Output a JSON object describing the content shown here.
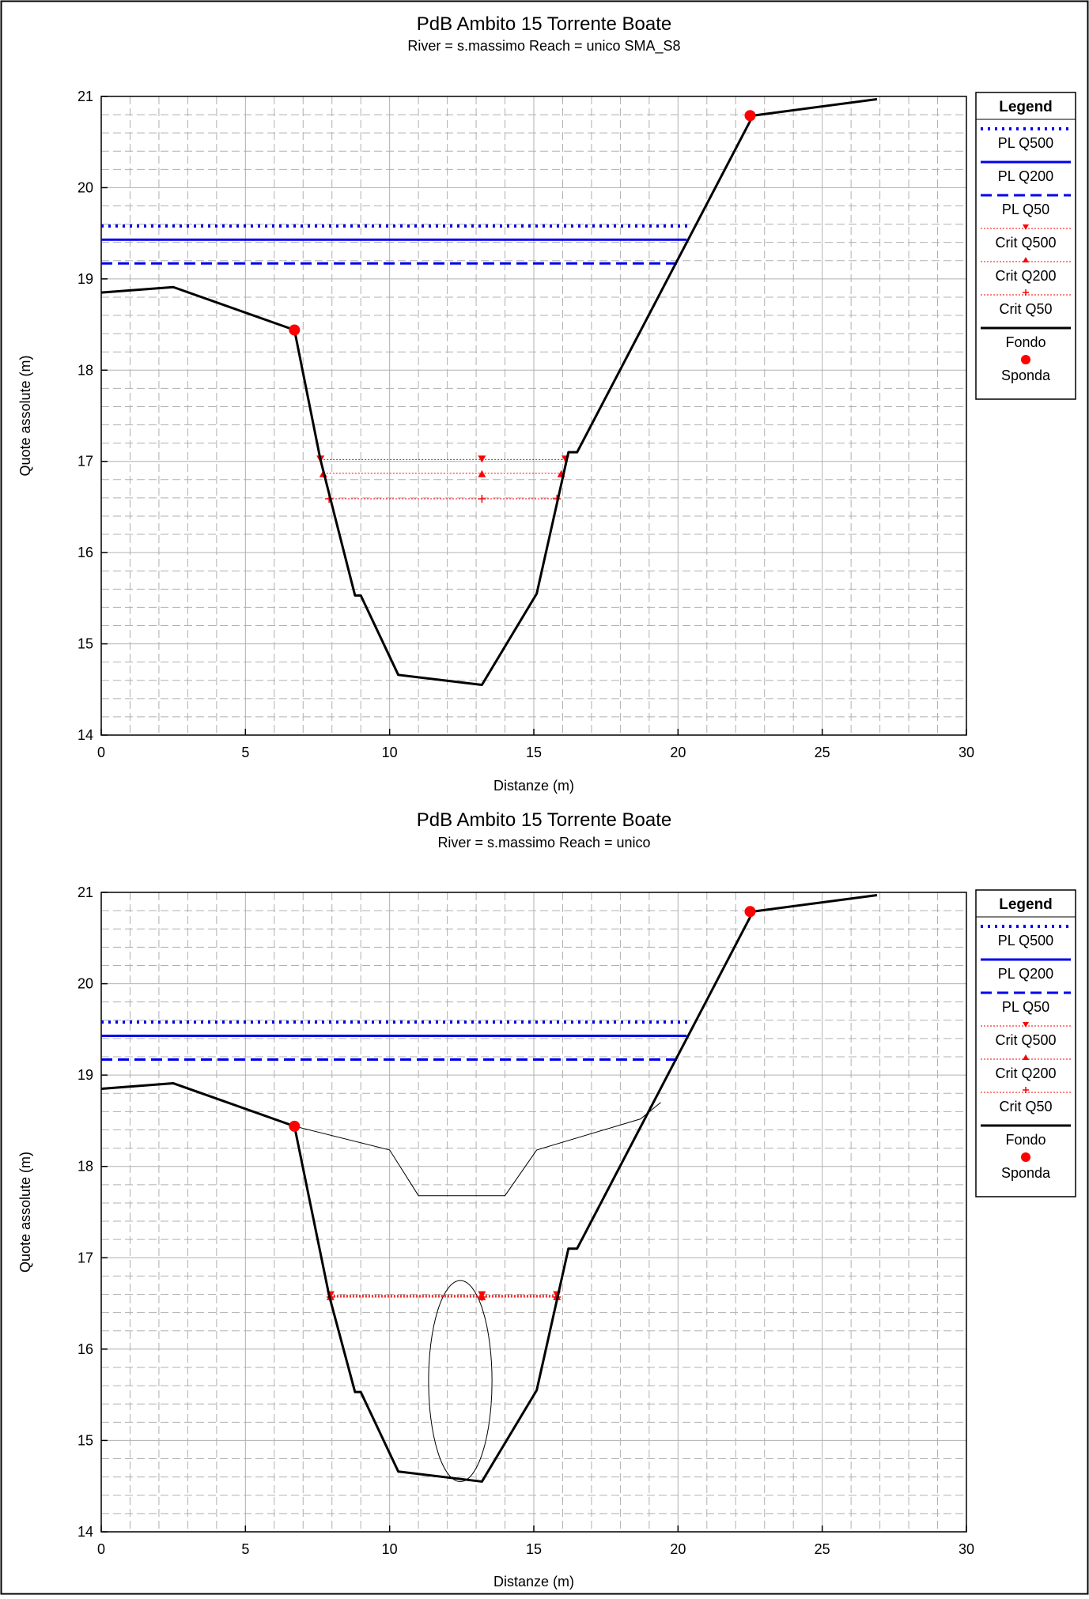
{
  "chart_data": [
    {
      "type": "line",
      "title": "PdB Ambito 15 Torrente Boate",
      "subtitle": "River = s.massimo   Reach = unico      SMA_S8",
      "xlabel": "Distanze (m)",
      "ylabel": "Quote assolute (m)",
      "xlim": [
        0,
        30
      ],
      "ylim": [
        14,
        21
      ],
      "xticks": [
        "0",
        "5",
        "10",
        "15",
        "20",
        "25",
        "30"
      ],
      "yticks": [
        "14",
        "15",
        "16",
        "17",
        "18",
        "19",
        "20",
        "21"
      ],
      "grid": true,
      "legend_position": "right",
      "legend_title": "Legend",
      "legend": [
        "PL Q500",
        "PL Q200",
        "PL Q50",
        "Crit Q500",
        "Crit Q200",
        "Crit Q50",
        "Fondo",
        "Sponda"
      ],
      "colors": {
        "water": "#0000ee",
        "crit": "#ff0000",
        "ground": "#000000",
        "bank": "#ff0000",
        "grid": "#b0b0b0"
      },
      "series": [
        {
          "name": "PL Q500",
          "style": "dotted",
          "x": [
            0,
            20.4
          ],
          "y": [
            19.58,
            19.58
          ]
        },
        {
          "name": "PL Q200",
          "style": "solid",
          "x": [
            0,
            20.3
          ],
          "y": [
            19.43,
            19.43
          ]
        },
        {
          "name": "PL Q50",
          "style": "dashed",
          "x": [
            0,
            20.0
          ],
          "y": [
            19.17,
            19.17
          ]
        },
        {
          "name": "Crit Q500",
          "style": "crit",
          "marker": "triangle-down",
          "x": [
            7.6,
            13.2,
            16.1
          ],
          "y": [
            17.02,
            17.02,
            17.02
          ]
        },
        {
          "name": "Crit Q200",
          "style": "crit",
          "marker": "triangle-up",
          "x": [
            7.7,
            13.2,
            15.95
          ],
          "y": [
            16.87,
            16.87,
            16.87
          ]
        },
        {
          "name": "Crit Q50",
          "style": "crit",
          "marker": "plus",
          "x": [
            7.9,
            13.2,
            15.8
          ],
          "y": [
            16.59,
            16.59,
            16.59
          ]
        },
        {
          "name": "Fondo",
          "style": "ground",
          "x": [
            0,
            2.5,
            6.7,
            7.6,
            8.8,
            9.0,
            10.3,
            13.2,
            15.1,
            16.2,
            16.5,
            22.6,
            26.9
          ],
          "y": [
            18.85,
            18.91,
            18.44,
            17.02,
            15.53,
            15.53,
            14.66,
            14.55,
            15.55,
            17.1,
            17.1,
            20.79,
            20.97
          ]
        },
        {
          "name": "Sponda",
          "style": "bank",
          "x": [
            6.7,
            22.5
          ],
          "y": [
            18.44,
            20.79
          ]
        }
      ]
    },
    {
      "type": "line",
      "title": "PdB Ambito 15 Torrente Boate",
      "subtitle": "River = s.massimo   Reach = unico",
      "xlabel": "Distanze (m)",
      "ylabel": "Quote assolute (m)",
      "xlim": [
        0,
        30
      ],
      "ylim": [
        14,
        21
      ],
      "xticks": [
        "0",
        "5",
        "10",
        "15",
        "20",
        "25",
        "30"
      ],
      "yticks": [
        "14",
        "15",
        "16",
        "17",
        "18",
        "19",
        "20",
        "21"
      ],
      "grid": true,
      "legend_position": "right",
      "legend_title": "Legend",
      "legend": [
        "PL Q500",
        "PL Q200",
        "PL Q50",
        "Crit Q500",
        "Crit Q200",
        "Crit Q50",
        "Fondo",
        "Sponda"
      ],
      "colors": {
        "water": "#0000ee",
        "crit": "#ff0000",
        "ground": "#000000",
        "bank": "#ff0000",
        "grid": "#b0b0b0"
      },
      "series": [
        {
          "name": "PL Q500",
          "style": "dotted",
          "x": [
            0,
            20.4
          ],
          "y": [
            19.58,
            19.58
          ]
        },
        {
          "name": "PL Q200",
          "style": "solid",
          "x": [
            0,
            20.3
          ],
          "y": [
            19.43,
            19.43
          ]
        },
        {
          "name": "PL Q50",
          "style": "dashed",
          "x": [
            0,
            20.0
          ],
          "y": [
            19.17,
            19.17
          ]
        },
        {
          "name": "Crit Q500",
          "style": "crit",
          "marker": "triangle-down",
          "x": [
            7.95,
            13.2,
            15.8
          ],
          "y": [
            16.59,
            16.59,
            16.59
          ]
        },
        {
          "name": "Crit Q200",
          "style": "crit",
          "marker": "triangle-up",
          "x": [
            7.95,
            13.2,
            15.8
          ],
          "y": [
            16.58,
            16.58,
            16.58
          ]
        },
        {
          "name": "Crit Q50",
          "style": "crit",
          "marker": "plus",
          "x": [
            7.95,
            13.2,
            15.8
          ],
          "y": [
            16.57,
            16.57,
            16.57
          ]
        },
        {
          "name": "Fondo",
          "style": "ground",
          "x": [
            0,
            2.5,
            6.7,
            7.9,
            8.8,
            9.0,
            10.3,
            13.2,
            15.1,
            16.2,
            16.5,
            22.6,
            26.9
          ],
          "y": [
            18.85,
            18.91,
            18.44,
            16.59,
            15.53,
            15.53,
            14.66,
            14.55,
            15.55,
            17.1,
            17.1,
            20.79,
            20.97
          ]
        },
        {
          "name": "Sponda",
          "style": "bank",
          "x": [
            6.7,
            22.5
          ],
          "y": [
            18.44,
            20.79
          ]
        }
      ],
      "structures": {
        "deck_line": {
          "x": [
            6.7,
            10.0,
            11.0,
            14.0,
            15.1,
            18.7,
            19.4
          ],
          "y": [
            18.44,
            18.18,
            17.68,
            17.68,
            18.18,
            18.52,
            18.7
          ]
        },
        "culvert_ellipse": {
          "cx": 12.45,
          "cy": 15.65,
          "rx": 1.1,
          "ry": 1.1
        }
      }
    }
  ]
}
